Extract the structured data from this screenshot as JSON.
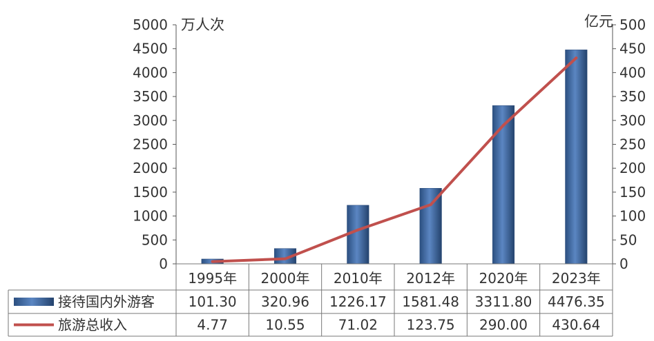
{
  "chart_data": {
    "type": "bar",
    "categories": [
      "1995年",
      "2000年",
      "2010年",
      "2012年",
      "2020年",
      "2023年"
    ],
    "y_left": {
      "unit_label": "万人次",
      "ylim": [
        0,
        5000
      ],
      "ticks": [
        0,
        500,
        1000,
        1500,
        2000,
        2500,
        3000,
        3500,
        4000,
        4500,
        5000
      ]
    },
    "y_right": {
      "unit_label": "亿元",
      "ylim": [
        0,
        500
      ],
      "ticks": [
        0,
        50,
        100,
        150,
        200,
        250,
        300,
        350,
        400,
        450,
        500
      ]
    },
    "series": [
      {
        "name": "接待国内外游客",
        "type": "bar",
        "axis": "left",
        "color": "#3f6aa6",
        "values": [
          101.3,
          320.96,
          1226.17,
          1581.48,
          3311.8,
          4476.35
        ],
        "labels": [
          "101.30",
          "320.96",
          "1226.17",
          "1581.48",
          "3311.80",
          "4476.35"
        ]
      },
      {
        "name": "旅游总收入",
        "type": "line",
        "axis": "right",
        "color": "#c0504d",
        "values": [
          4.77,
          10.55,
          71.02,
          123.75,
          290.0,
          430.64
        ],
        "labels": [
          "4.77",
          "10.55",
          "71.02",
          "123.75",
          "290.00",
          "430.64"
        ]
      }
    ],
    "legend_placement": "data-table-left",
    "grid": false,
    "data_table": true
  }
}
